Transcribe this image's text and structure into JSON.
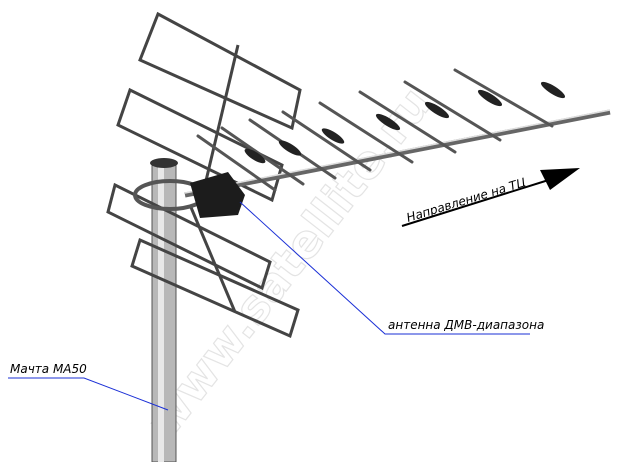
{
  "labels": {
    "direction": "Направление на ТЦ",
    "antenna": "антенна ДМВ-диапазона",
    "mast": "Мачта МА50"
  },
  "watermark": "www.satellite.ru"
}
